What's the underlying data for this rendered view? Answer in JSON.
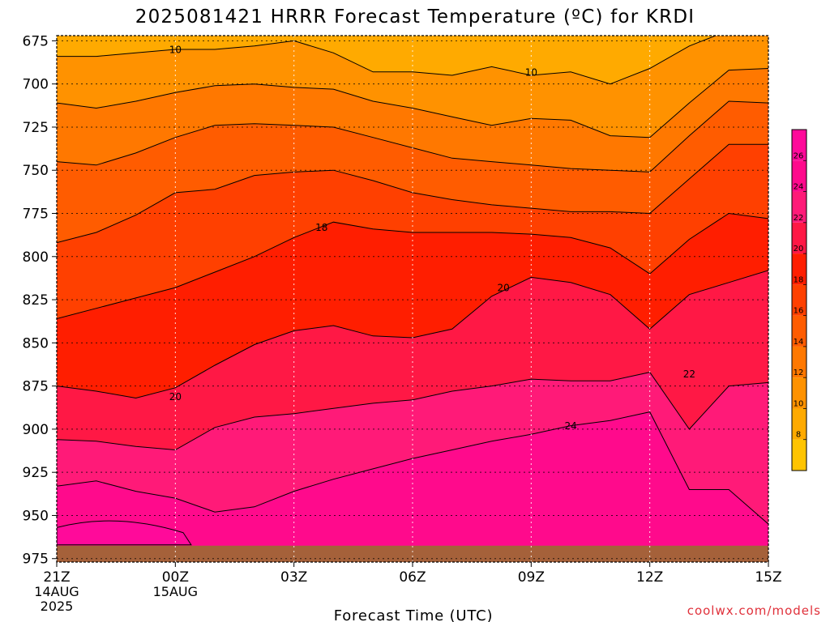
{
  "chart_data": {
    "type": "contour-timeheight",
    "title": "2025081421 HRRR Forecast Temperature (ºC) for KRDI",
    "xlabel": "Forecast Time (UTC)",
    "ylabel": "",
    "watermark": "coolwx.com/models",
    "x_ticks": [
      {
        "h": 0,
        "lines": [
          "21Z",
          "14AUG",
          "2025"
        ]
      },
      {
        "h": 3,
        "lines": [
          "00Z",
          "15AUG"
        ]
      },
      {
        "h": 6,
        "lines": [
          "03Z"
        ]
      },
      {
        "h": 9,
        "lines": [
          "06Z"
        ]
      },
      {
        "h": 12,
        "lines": [
          "09Z"
        ]
      },
      {
        "h": 15,
        "lines": [
          "12Z"
        ]
      },
      {
        "h": 18,
        "lines": [
          "15Z"
        ]
      }
    ],
    "xlim_hours": [
      0,
      18
    ],
    "y_ticks": [
      675,
      700,
      725,
      750,
      775,
      800,
      825,
      850,
      875,
      900,
      925,
      950,
      975
    ],
    "ylim_hpa": [
      672,
      977
    ],
    "ground_hpa": 967.5,
    "ground_color": "#a5613a",
    "colorbar": {
      "labels": [
        8,
        10,
        12,
        14,
        16,
        18,
        20,
        22,
        24,
        26
      ],
      "bands": [
        {
          "from": 6,
          "to": 8,
          "color": "#ffc400"
        },
        {
          "from": 8,
          "to": 10,
          "color": "#ffaa00"
        },
        {
          "from": 10,
          "to": 12,
          "color": "#ff9200"
        },
        {
          "from": 12,
          "to": 14,
          "color": "#ff7800"
        },
        {
          "from": 14,
          "to": 16,
          "color": "#ff5c00"
        },
        {
          "from": 16,
          "to": 18,
          "color": "#ff4000"
        },
        {
          "from": 18,
          "to": 20,
          "color": "#ff1e00"
        },
        {
          "from": 20,
          "to": 22,
          "color": "#ff1845"
        },
        {
          "from": 22,
          "to": 24,
          "color": "#ff1a78"
        },
        {
          "from": 24,
          "to": 26,
          "color": "#ff0a8c"
        },
        {
          "from": 26,
          "to": 28,
          "color": "#ff0a9a"
        }
      ]
    },
    "x_hours": [
      0,
      1,
      2,
      3,
      4,
      5,
      6,
      7,
      8,
      9,
      10,
      11,
      12,
      13,
      14,
      15,
      16,
      17,
      18
    ],
    "isotherms": [
      {
        "value": 8,
        "p": [
          null,
          null,
          null,
          null,
          null,
          null,
          null,
          null,
          null,
          null,
          null,
          null,
          null,
          null,
          null,
          null,
          null,
          null,
          null
        ]
      },
      {
        "value": 10,
        "p": [
          684,
          684,
          682,
          680,
          680,
          678,
          675,
          682,
          693,
          693,
          695,
          690,
          695,
          693,
          700,
          691,
          678,
          669,
          669
        ]
      },
      {
        "value": 12,
        "p": [
          711,
          714,
          710,
          705,
          701,
          700,
          702,
          703,
          710,
          714,
          719,
          724,
          720,
          721,
          730,
          731,
          711,
          692,
          691
        ]
      },
      {
        "value": 14,
        "p": [
          745,
          747,
          740,
          731,
          724,
          723,
          724,
          725,
          731,
          737,
          743,
          745,
          747,
          749,
          750,
          751,
          730,
          710,
          711
        ]
      },
      {
        "value": 16,
        "p": [
          792,
          786,
          776,
          763,
          761,
          753,
          751,
          750,
          756,
          763,
          767,
          770,
          772,
          774,
          774,
          775,
          755,
          735,
          735
        ]
      },
      {
        "value": 18,
        "p": [
          836,
          830,
          824,
          818,
          809,
          800,
          789,
          780,
          784,
          786,
          786,
          786,
          787,
          789,
          795,
          810,
          790,
          775,
          778
        ]
      },
      {
        "value": 20,
        "p": [
          875,
          878,
          882,
          876,
          863,
          851,
          843,
          840,
          846,
          847,
          842,
          823,
          812,
          815,
          822,
          842,
          822,
          815,
          808
        ]
      },
      {
        "value": 22,
        "p": [
          906,
          907,
          910,
          912,
          899,
          893,
          891,
          888,
          885,
          883,
          878,
          875,
          871,
          872,
          872,
          867,
          900,
          875,
          873
        ]
      },
      {
        "value": 24,
        "p": [
          933,
          930,
          936,
          940,
          948,
          945,
          936,
          929,
          923,
          917,
          912,
          907,
          903,
          898,
          895,
          890,
          935,
          935,
          955
        ]
      }
    ],
    "contour_labels": [
      {
        "value": 10,
        "h": 3.0,
        "p": 680
      },
      {
        "value": 10,
        "h": 12.0,
        "p": 693
      },
      {
        "value": 18,
        "h": 6.7,
        "p": 783
      },
      {
        "value": 20,
        "h": 11.3,
        "p": 818
      },
      {
        "value": 20,
        "h": 3.0,
        "p": 881
      },
      {
        "value": 22,
        "h": 16.0,
        "p": 868
      },
      {
        "value": 24,
        "h": 13.0,
        "p": 898
      }
    ]
  }
}
